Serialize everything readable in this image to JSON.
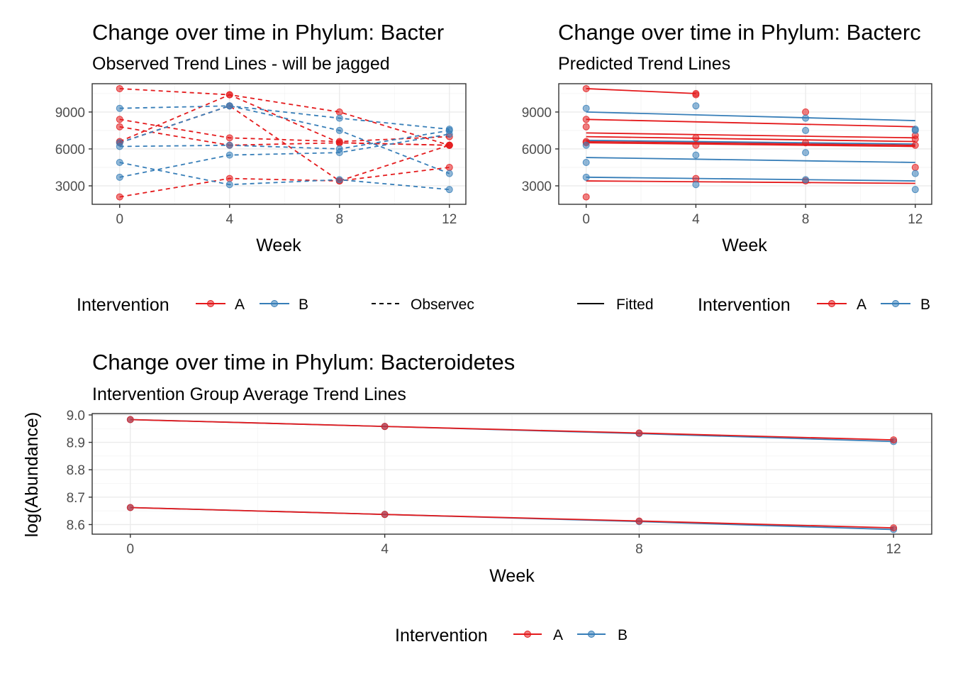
{
  "colors": {
    "A": "#e41a1c",
    "B": "#377eb8",
    "dot_alpha": 0.55
  },
  "chart_data": [
    {
      "type": "line",
      "title": "Change over time in Phylum: Bacter",
      "subtitle": "Observed Trend Lines - will be jagged",
      "xlabel": "Week",
      "ylabel": "",
      "xlim": [
        -1,
        12.6
      ],
      "ylim": [
        1500,
        11300
      ],
      "xticks": [
        0,
        4,
        8,
        12
      ],
      "yticks": [
        3000,
        6000,
        9000
      ],
      "line_style": "dashed",
      "legend": {
        "position": "bottom",
        "title": "Intervention",
        "entries": [
          "A",
          "B"
        ],
        "linetype_entries": [
          "Observec"
        ]
      },
      "series": [
        {
          "group": "A",
          "x": [
            0,
            4,
            8,
            12
          ],
          "y": [
            10900,
            10400,
            6500,
            6300
          ]
        },
        {
          "group": "A",
          "x": [
            0,
            4,
            8,
            12
          ],
          "y": [
            8400,
            6900,
            6600,
            7000
          ]
        },
        {
          "group": "A",
          "x": [
            0,
            4,
            8,
            12
          ],
          "y": [
            7800,
            6300,
            6500,
            6300
          ]
        },
        {
          "group": "A",
          "x": [
            0,
            4,
            8,
            12
          ],
          "y": [
            6600,
            10400,
            9000,
            6300
          ]
        },
        {
          "group": "A",
          "x": [
            0,
            4,
            8,
            12
          ],
          "y": [
            6500,
            9500,
            3400,
            6300
          ]
        },
        {
          "group": "A",
          "x": [
            0,
            4,
            8,
            12
          ],
          "y": [
            2100,
            3600,
            3400,
            4500
          ]
        },
        {
          "group": "B",
          "x": [
            0,
            4,
            8,
            12
          ],
          "y": [
            9300,
            9500,
            8500,
            7600
          ]
        },
        {
          "group": "B",
          "x": [
            0,
            4,
            8,
            12
          ],
          "y": [
            6500,
            9500,
            7500,
            4000
          ]
        },
        {
          "group": "B",
          "x": [
            0,
            4,
            8,
            12
          ],
          "y": [
            6200,
            6300,
            6000,
            7500
          ]
        },
        {
          "group": "B",
          "x": [
            0,
            4,
            8,
            12
          ],
          "y": [
            4900,
            3100,
            3500,
            2700
          ]
        },
        {
          "group": "B",
          "x": [
            0,
            4,
            8,
            12
          ],
          "y": [
            3700,
            5500,
            5700,
            7200
          ]
        }
      ]
    },
    {
      "type": "line",
      "title": "Change over time in Phylum: Bacterc",
      "subtitle": "Predicted Trend Lines",
      "xlabel": "Week",
      "ylabel": "",
      "xlim": [
        -1,
        12.6
      ],
      "ylim": [
        1500,
        11300
      ],
      "xticks": [
        0,
        4,
        8,
        12
      ],
      "yticks": [
        3000,
        6000,
        9000
      ],
      "line_style": "solid",
      "legend": {
        "position": "bottom",
        "title": "Intervention",
        "entries": [
          "A",
          "B"
        ],
        "linetype_entries": [
          "Fitted"
        ]
      },
      "fitted": [
        {
          "group": "A",
          "x": [
            0,
            4
          ],
          "y": [
            10900,
            10500
          ]
        },
        {
          "group": "A",
          "x": [
            0,
            12
          ],
          "y": [
            8400,
            7800
          ]
        },
        {
          "group": "A",
          "x": [
            0,
            12
          ],
          "y": [
            7300,
            6900
          ]
        },
        {
          "group": "A",
          "x": [
            0,
            12
          ],
          "y": [
            7000,
            6600
          ]
        },
        {
          "group": "A",
          "x": [
            0,
            12
          ],
          "y": [
            6600,
            6300
          ]
        },
        {
          "group": "A",
          "x": [
            0,
            12
          ],
          "y": [
            6500,
            6200
          ]
        },
        {
          "group": "A",
          "x": [
            0,
            12
          ],
          "y": [
            3400,
            3200
          ]
        },
        {
          "group": "B",
          "x": [
            0,
            12
          ],
          "y": [
            9000,
            8300
          ]
        },
        {
          "group": "B",
          "x": [
            0,
            12
          ],
          "y": [
            6700,
            6400
          ]
        },
        {
          "group": "B",
          "x": [
            0,
            12
          ],
          "y": [
            5300,
            4900
          ]
        },
        {
          "group": "B",
          "x": [
            0,
            12
          ],
          "y": [
            3700,
            3400
          ]
        }
      ],
      "points": [
        {
          "group": "A",
          "x": 0,
          "y": 10900
        },
        {
          "group": "A",
          "x": 0,
          "y": 8400
        },
        {
          "group": "A",
          "x": 0,
          "y": 7800
        },
        {
          "group": "A",
          "x": 0,
          "y": 6600
        },
        {
          "group": "A",
          "x": 0,
          "y": 6500
        },
        {
          "group": "A",
          "x": 0,
          "y": 2100
        },
        {
          "group": "A",
          "x": 4,
          "y": 10400
        },
        {
          "group": "A",
          "x": 4,
          "y": 10500
        },
        {
          "group": "A",
          "x": 4,
          "y": 6900
        },
        {
          "group": "A",
          "x": 4,
          "y": 6300
        },
        {
          "group": "A",
          "x": 4,
          "y": 3600
        },
        {
          "group": "A",
          "x": 8,
          "y": 9000
        },
        {
          "group": "A",
          "x": 8,
          "y": 6500
        },
        {
          "group": "A",
          "x": 8,
          "y": 3400
        },
        {
          "group": "A",
          "x": 12,
          "y": 7100
        },
        {
          "group": "A",
          "x": 12,
          "y": 6800
        },
        {
          "group": "A",
          "x": 12,
          "y": 6300
        },
        {
          "group": "A",
          "x": 12,
          "y": 4500
        },
        {
          "group": "B",
          "x": 0,
          "y": 9300
        },
        {
          "group": "B",
          "x": 0,
          "y": 6300
        },
        {
          "group": "B",
          "x": 0,
          "y": 4900
        },
        {
          "group": "B",
          "x": 0,
          "y": 3700
        },
        {
          "group": "B",
          "x": 4,
          "y": 9500
        },
        {
          "group": "B",
          "x": 4,
          "y": 5500
        },
        {
          "group": "B",
          "x": 4,
          "y": 3100
        },
        {
          "group": "B",
          "x": 8,
          "y": 8500
        },
        {
          "group": "B",
          "x": 8,
          "y": 7500
        },
        {
          "group": "B",
          "x": 8,
          "y": 5700
        },
        {
          "group": "B",
          "x": 8,
          "y": 3500
        },
        {
          "group": "B",
          "x": 12,
          "y": 7600
        },
        {
          "group": "B",
          "x": 12,
          "y": 7500
        },
        {
          "group": "B",
          "x": 12,
          "y": 4000
        },
        {
          "group": "B",
          "x": 12,
          "y": 2700
        }
      ]
    },
    {
      "type": "line",
      "title": "Change over time in Phylum: Bacteroidetes",
      "subtitle": "Intervention Group Average Trend Lines",
      "xlabel": "Week",
      "ylabel": "log(Abundance)",
      "xlim": [
        -0.6,
        12.6
      ],
      "ylim": [
        8.565,
        9.005
      ],
      "xticks": [
        0,
        4,
        8,
        12
      ],
      "yticks": [
        8.6,
        8.7,
        8.8,
        8.9,
        9.0
      ],
      "ytick_labels": [
        "8.6",
        "8.7",
        "8.8",
        "8.9",
        "9.0"
      ],
      "line_style": "solid",
      "legend": {
        "position": "bottom",
        "title": "Intervention",
        "entries": [
          "A",
          "B"
        ]
      },
      "series": [
        {
          "group": "B",
          "x": [
            0,
            4,
            8,
            12
          ],
          "y": [
            8.983,
            8.958,
            8.932,
            8.903
          ]
        },
        {
          "group": "A",
          "x": [
            0,
            4,
            8,
            12
          ],
          "y": [
            8.983,
            8.958,
            8.934,
            8.909
          ]
        },
        {
          "group": "B",
          "x": [
            0,
            4,
            8,
            12
          ],
          "y": [
            8.662,
            8.637,
            8.611,
            8.582
          ]
        },
        {
          "group": "A",
          "x": [
            0,
            4,
            8,
            12
          ],
          "y": [
            8.662,
            8.637,
            8.613,
            8.588
          ]
        }
      ]
    }
  ]
}
